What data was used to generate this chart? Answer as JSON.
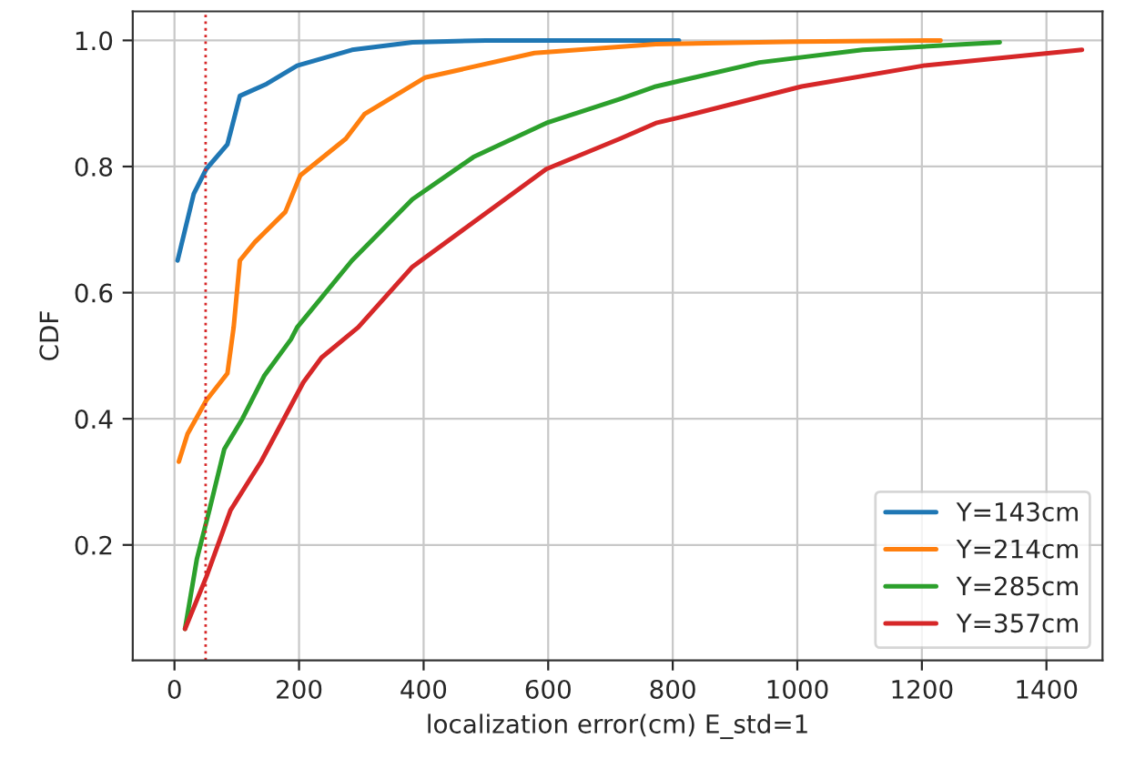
{
  "chart_data": {
    "type": "line",
    "xlabel": "localization error(cm) E_std=1",
    "ylabel": "CDF",
    "xlim": [
      -67,
      1490
    ],
    "ylim": [
      0.017,
      1.046
    ],
    "xticks": [
      0,
      200,
      400,
      600,
      800,
      1000,
      1200,
      1400
    ],
    "yticks": [
      {
        "value": 0.2,
        "label": "0.2"
      },
      {
        "value": 0.4,
        "label": "0.4"
      },
      {
        "value": 0.6,
        "label": "0.6"
      },
      {
        "value": 0.8,
        "label": "0.8"
      },
      {
        "value": 1.0,
        "label": "1.0"
      }
    ],
    "grid": true,
    "legend": "bottom right",
    "ref_lines": [
      {
        "axis": "x",
        "value": 50,
        "color": "#d62728",
        "line_style": "dotted"
      }
    ],
    "series": [
      {
        "name": "Y=143cm",
        "color": "#1f77b4",
        "x": [
          5,
          31,
          51,
          85,
          105,
          148,
          197,
          285,
          382,
          500,
          810
        ],
        "values": [
          0.651,
          0.757,
          0.796,
          0.835,
          0.912,
          0.931,
          0.96,
          0.985,
          0.997,
          1.0,
          1.0
        ]
      },
      {
        "name": "Y=214cm",
        "color": "#ff7f0e",
        "x": [
          7,
          21,
          51,
          85,
          95,
          105,
          129,
          178,
          202,
          275,
          305,
          402,
          578,
          773,
          1000,
          1230
        ],
        "values": [
          0.332,
          0.376,
          0.429,
          0.472,
          0.545,
          0.651,
          0.68,
          0.728,
          0.786,
          0.844,
          0.883,
          0.941,
          0.98,
          0.994,
          0.998,
          1.0
        ]
      },
      {
        "name": "Y=285cm",
        "color": "#2ca02c",
        "x": [
          17,
          36,
          56,
          80,
          109,
          144,
          187,
          197,
          285,
          382,
          480,
          597,
          715,
          773,
          812,
          939,
          1105,
          1325
        ],
        "values": [
          0.067,
          0.178,
          0.255,
          0.352,
          0.4,
          0.468,
          0.526,
          0.545,
          0.651,
          0.748,
          0.815,
          0.869,
          0.907,
          0.927,
          0.936,
          0.965,
          0.985,
          0.997
        ]
      },
      {
        "name": "Y=357cm",
        "color": "#d62728",
        "x": [
          17,
          51,
          90,
          139,
          207,
          236,
          295,
          382,
          597,
          715,
          773,
          812,
          1007,
          1203,
          1457
        ],
        "values": [
          0.067,
          0.149,
          0.255,
          0.332,
          0.458,
          0.497,
          0.545,
          0.641,
          0.796,
          0.844,
          0.869,
          0.878,
          0.927,
          0.96,
          0.985
        ]
      }
    ]
  }
}
